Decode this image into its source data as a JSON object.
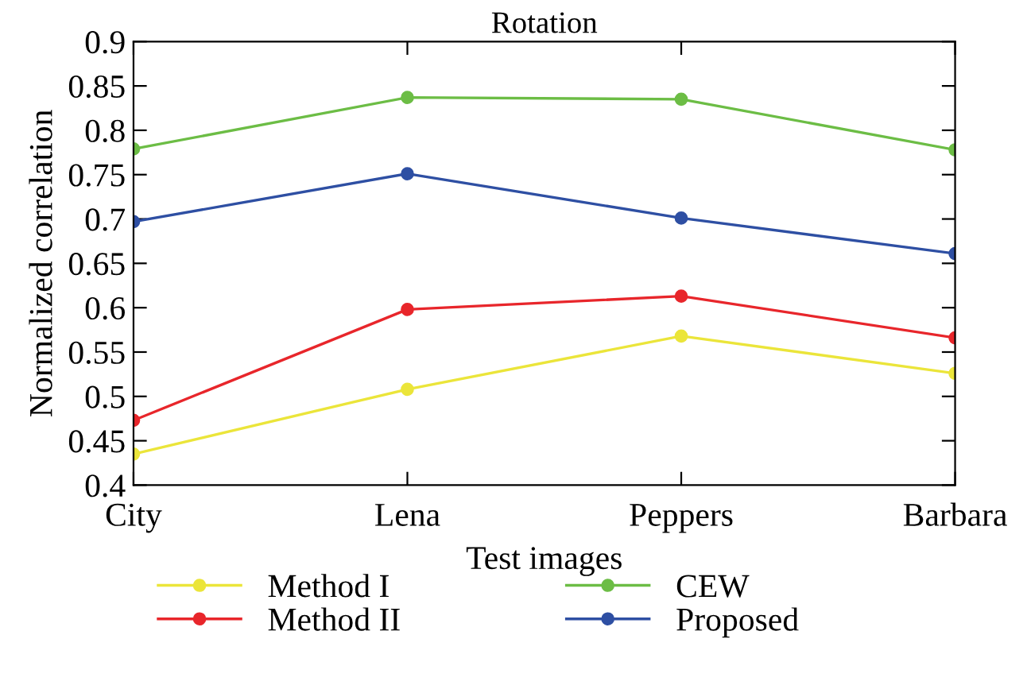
{
  "chart_data": {
    "type": "line",
    "title": "Rotation",
    "xlabel": "Test images",
    "ylabel": "Normalized correlation",
    "categories": [
      "City",
      "Lena",
      "Peppers",
      "Barbara"
    ],
    "series": [
      {
        "name": "Method I",
        "color": "#ebe53a",
        "values": [
          0.435,
          0.508,
          0.568,
          0.526
        ]
      },
      {
        "name": "Method II",
        "color": "#e8262b",
        "values": [
          0.473,
          0.598,
          0.613,
          0.566
        ]
      },
      {
        "name": "CEW",
        "color": "#6cbd45",
        "values": [
          0.779,
          0.837,
          0.835,
          0.778
        ]
      },
      {
        "name": "Proposed",
        "color": "#2e4fa3",
        "values": [
          0.697,
          0.751,
          0.701,
          0.661
        ]
      }
    ],
    "ylim": [
      0.4,
      0.9
    ],
    "yticks": [
      0.4,
      0.45,
      0.5,
      0.55,
      0.6,
      0.65,
      0.7,
      0.75,
      0.8,
      0.85,
      0.9
    ],
    "grid": false,
    "legend": "bottom",
    "marker": "circle",
    "line_style": "solid"
  }
}
